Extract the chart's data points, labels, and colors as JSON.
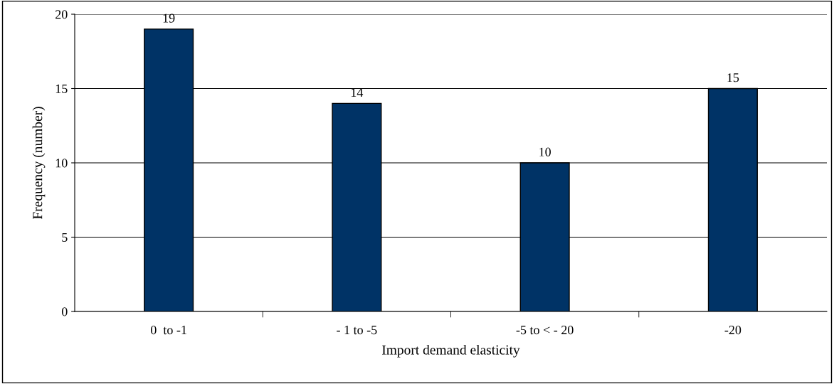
{
  "chart_data": {
    "type": "bar",
    "xlabel": "Import demand elasticity",
    "ylabel": "Frequency (number)",
    "categories": [
      "0  to -1",
      "- 1 to -5",
      "-5 to < - 20",
      "-20"
    ],
    "values": [
      19,
      14,
      10,
      15
    ],
    "color": "#003366",
    "ylim": [
      0,
      20
    ],
    "yticks": [
      0,
      5,
      10,
      15,
      20
    ],
    "grid": "y",
    "data_labels": true,
    "legend": false
  }
}
